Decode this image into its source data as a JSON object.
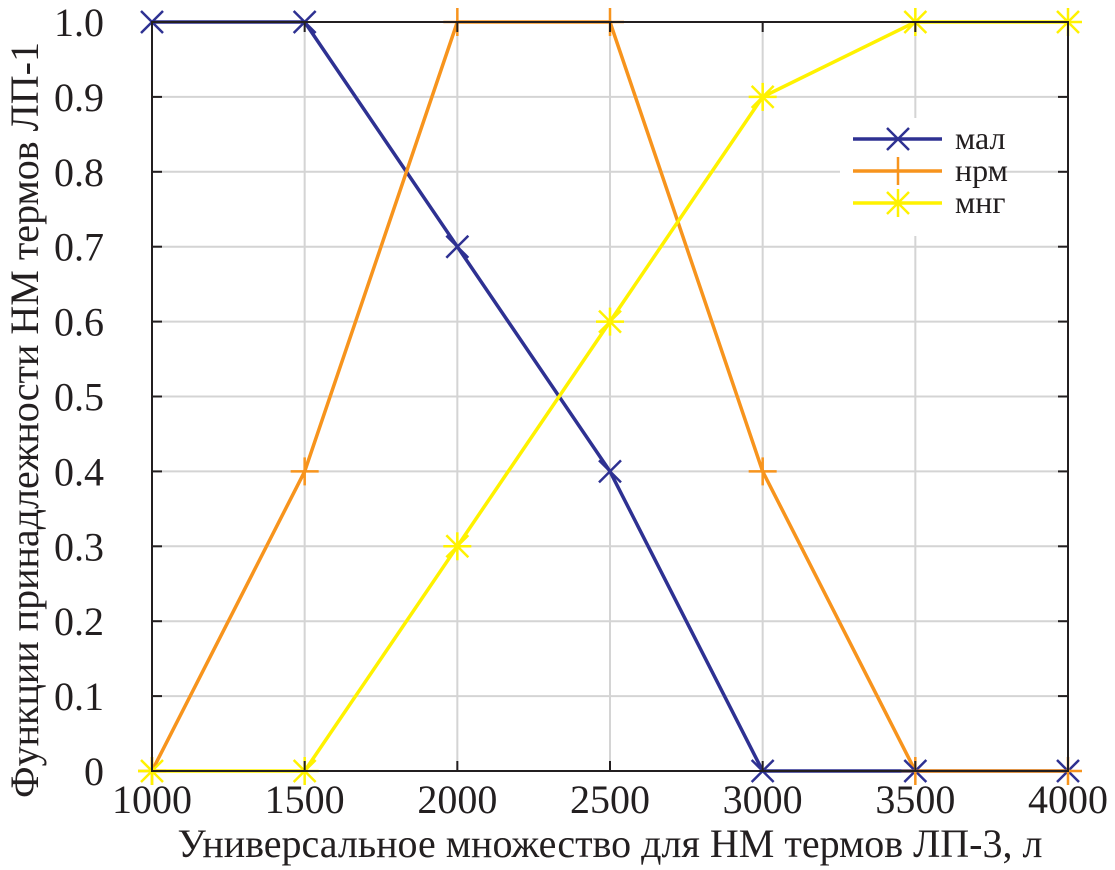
{
  "chart_data": {
    "type": "line",
    "title": "",
    "xlabel": "Универсальное множество для НМ термов ЛП-3, л",
    "ylabel": "Функции принадлежности НМ термов ЛП-1",
    "x": [
      1000,
      1500,
      2000,
      2500,
      3000,
      3500,
      4000
    ],
    "xlim": [
      1000,
      4000
    ],
    "ylim": [
      0,
      1
    ],
    "xticks": [
      "1000",
      "1500",
      "2000",
      "2500",
      "3000",
      "3500",
      "4000"
    ],
    "yticks": [
      "0",
      "0.1",
      "0.2",
      "0.3",
      "0.4",
      "0.5",
      "0.6",
      "0.7",
      "0.8",
      "0.9",
      "1.0"
    ],
    "grid": true,
    "legend_position": "top-right",
    "series": [
      {
        "name": "мал",
        "color": "#2e3192",
        "marker": "x",
        "values": [
          1,
          1,
          0.7,
          0.4,
          0,
          0,
          0
        ]
      },
      {
        "name": "нрм",
        "color": "#f7941d",
        "marker": "+",
        "values": [
          0,
          0.4,
          1,
          1,
          0.4,
          0,
          0
        ]
      },
      {
        "name": "мнг",
        "color": "#fff200",
        "marker": "*",
        "values": [
          0,
          0,
          0.3,
          0.6,
          0.9,
          1,
          1
        ]
      }
    ]
  }
}
